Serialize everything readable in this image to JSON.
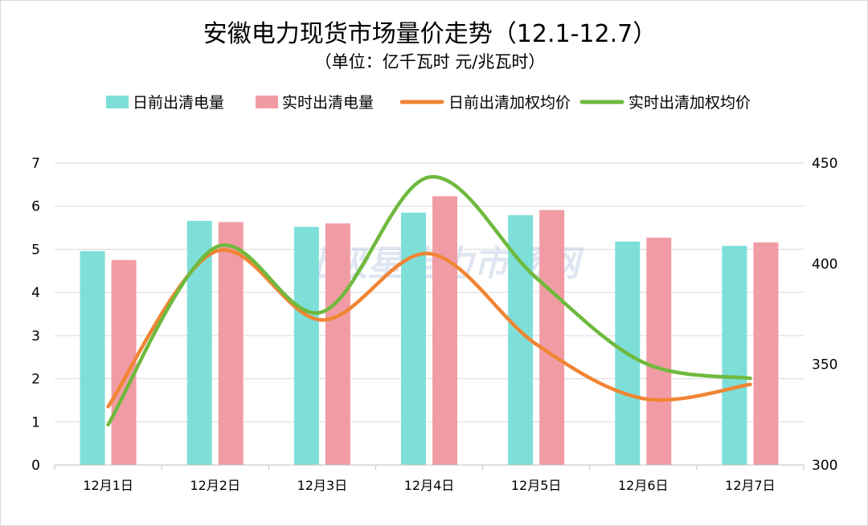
{
  "chart_data": {
    "type": "bar",
    "title": "安徽电力现货市场量价走势（12.1-12.7）",
    "subtitle": "（单位：亿千瓦时 元/兆瓦时）",
    "categories": [
      "12月1日",
      "12月2日",
      "12月3日",
      "12月4日",
      "12月5日",
      "12月6日",
      "12月7日"
    ],
    "series": [
      {
        "name": "日前出清电量",
        "kind": "bar",
        "axis": "left",
        "color": "#7edfd9",
        "values": [
          4.96,
          5.66,
          5.52,
          5.85,
          5.79,
          5.18,
          5.08
        ]
      },
      {
        "name": "实时出清电量",
        "kind": "bar",
        "axis": "left",
        "color": "#f19ca5",
        "values": [
          4.75,
          5.63,
          5.6,
          6.23,
          5.91,
          5.27,
          5.16
        ]
      },
      {
        "name": "日前出清加权均价",
        "kind": "line",
        "axis": "right",
        "color": "#f08534",
        "values": [
          329,
          406,
          372,
          405,
          360,
          333,
          340
        ]
      },
      {
        "name": "实时出清加权均价",
        "kind": "line",
        "axis": "right",
        "color": "#6fba3e",
        "values": [
          320,
          408,
          376,
          443,
          393,
          351,
          343
        ]
      }
    ],
    "y_left": {
      "min": 0,
      "max": 7,
      "ticks": [
        0,
        1,
        2,
        3,
        4,
        5,
        6,
        7
      ]
    },
    "y_right": {
      "min": 300,
      "max": 450,
      "ticks": [
        300,
        350,
        400,
        450
      ]
    },
    "grid": true,
    "legend_position": "top",
    "watermark": "北极星电力市场网"
  }
}
